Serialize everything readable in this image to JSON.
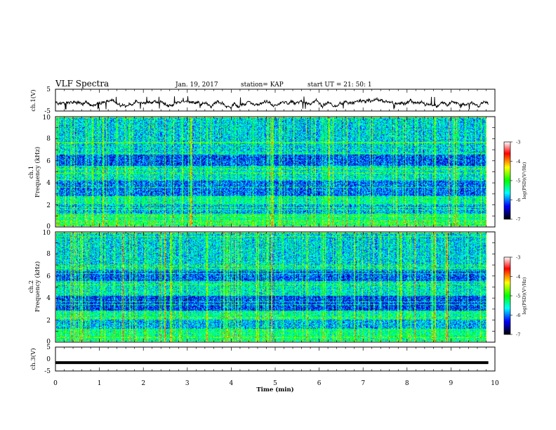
{
  "header": {
    "title": "VLF Spectra",
    "date": "Jan. 19, 2017",
    "station": "station= KAP",
    "start": "start  UT =  21: 50: 1"
  },
  "colorbar": {
    "label": "log(PSD)(V²/Hz)",
    "ticks": [
      "-3",
      "-4",
      "-5",
      "-6",
      "-7"
    ],
    "colors": [
      "#ffffff",
      "#ff0000",
      "#ffff00",
      "#00ff00",
      "#00ffff",
      "#0000ff",
      "#000000"
    ]
  },
  "chart_data": [
    {
      "type": "line",
      "panel": "ch1-waveform",
      "ylabel": "ch.1(V)",
      "ylim": [
        -5,
        5
      ],
      "y_ticks": [
        "5",
        "-5"
      ],
      "xlim": [
        0,
        10
      ],
      "x_min": [
        0,
        10
      ],
      "description_of_trace": "noisy black waveform between about -3 and 0 V"
    },
    {
      "type": "heatmap",
      "panel": "ch1-spectrogram",
      "ylabel_line1": "ch.1",
      "ylabel_line2": "Frequency (kHz)",
      "ylim": [
        0,
        10
      ],
      "y_ticks": [
        "0",
        "2",
        "4",
        "6",
        "8",
        "10"
      ],
      "xlim": [
        0,
        10
      ],
      "zlim": [
        -7,
        -3
      ]
    },
    {
      "type": "heatmap",
      "panel": "ch2-spectrogram",
      "ylabel_line1": "ch.2",
      "ylabel_line2": "Frequency (kHz)",
      "ylim": [
        0,
        10
      ],
      "y_ticks": [
        "0",
        "2",
        "4",
        "6",
        "8",
        "10"
      ],
      "xlim": [
        0,
        10
      ],
      "zlim": [
        -7,
        -3
      ]
    },
    {
      "type": "line",
      "panel": "ch3-waveform",
      "ylabel": "ch.3(V)",
      "ylim": [
        -5,
        5
      ],
      "y_ticks": [
        "5",
        "0",
        "-5"
      ],
      "xlim": [
        0,
        10
      ],
      "x": [
        0,
        9.85
      ],
      "values": [
        -1.5,
        -1.5
      ]
    }
  ],
  "xaxis": {
    "label": "Time  (min)",
    "ticks": [
      "0",
      "1",
      "2",
      "3",
      "4",
      "5",
      "6",
      "7",
      "8",
      "9",
      "10"
    ]
  }
}
